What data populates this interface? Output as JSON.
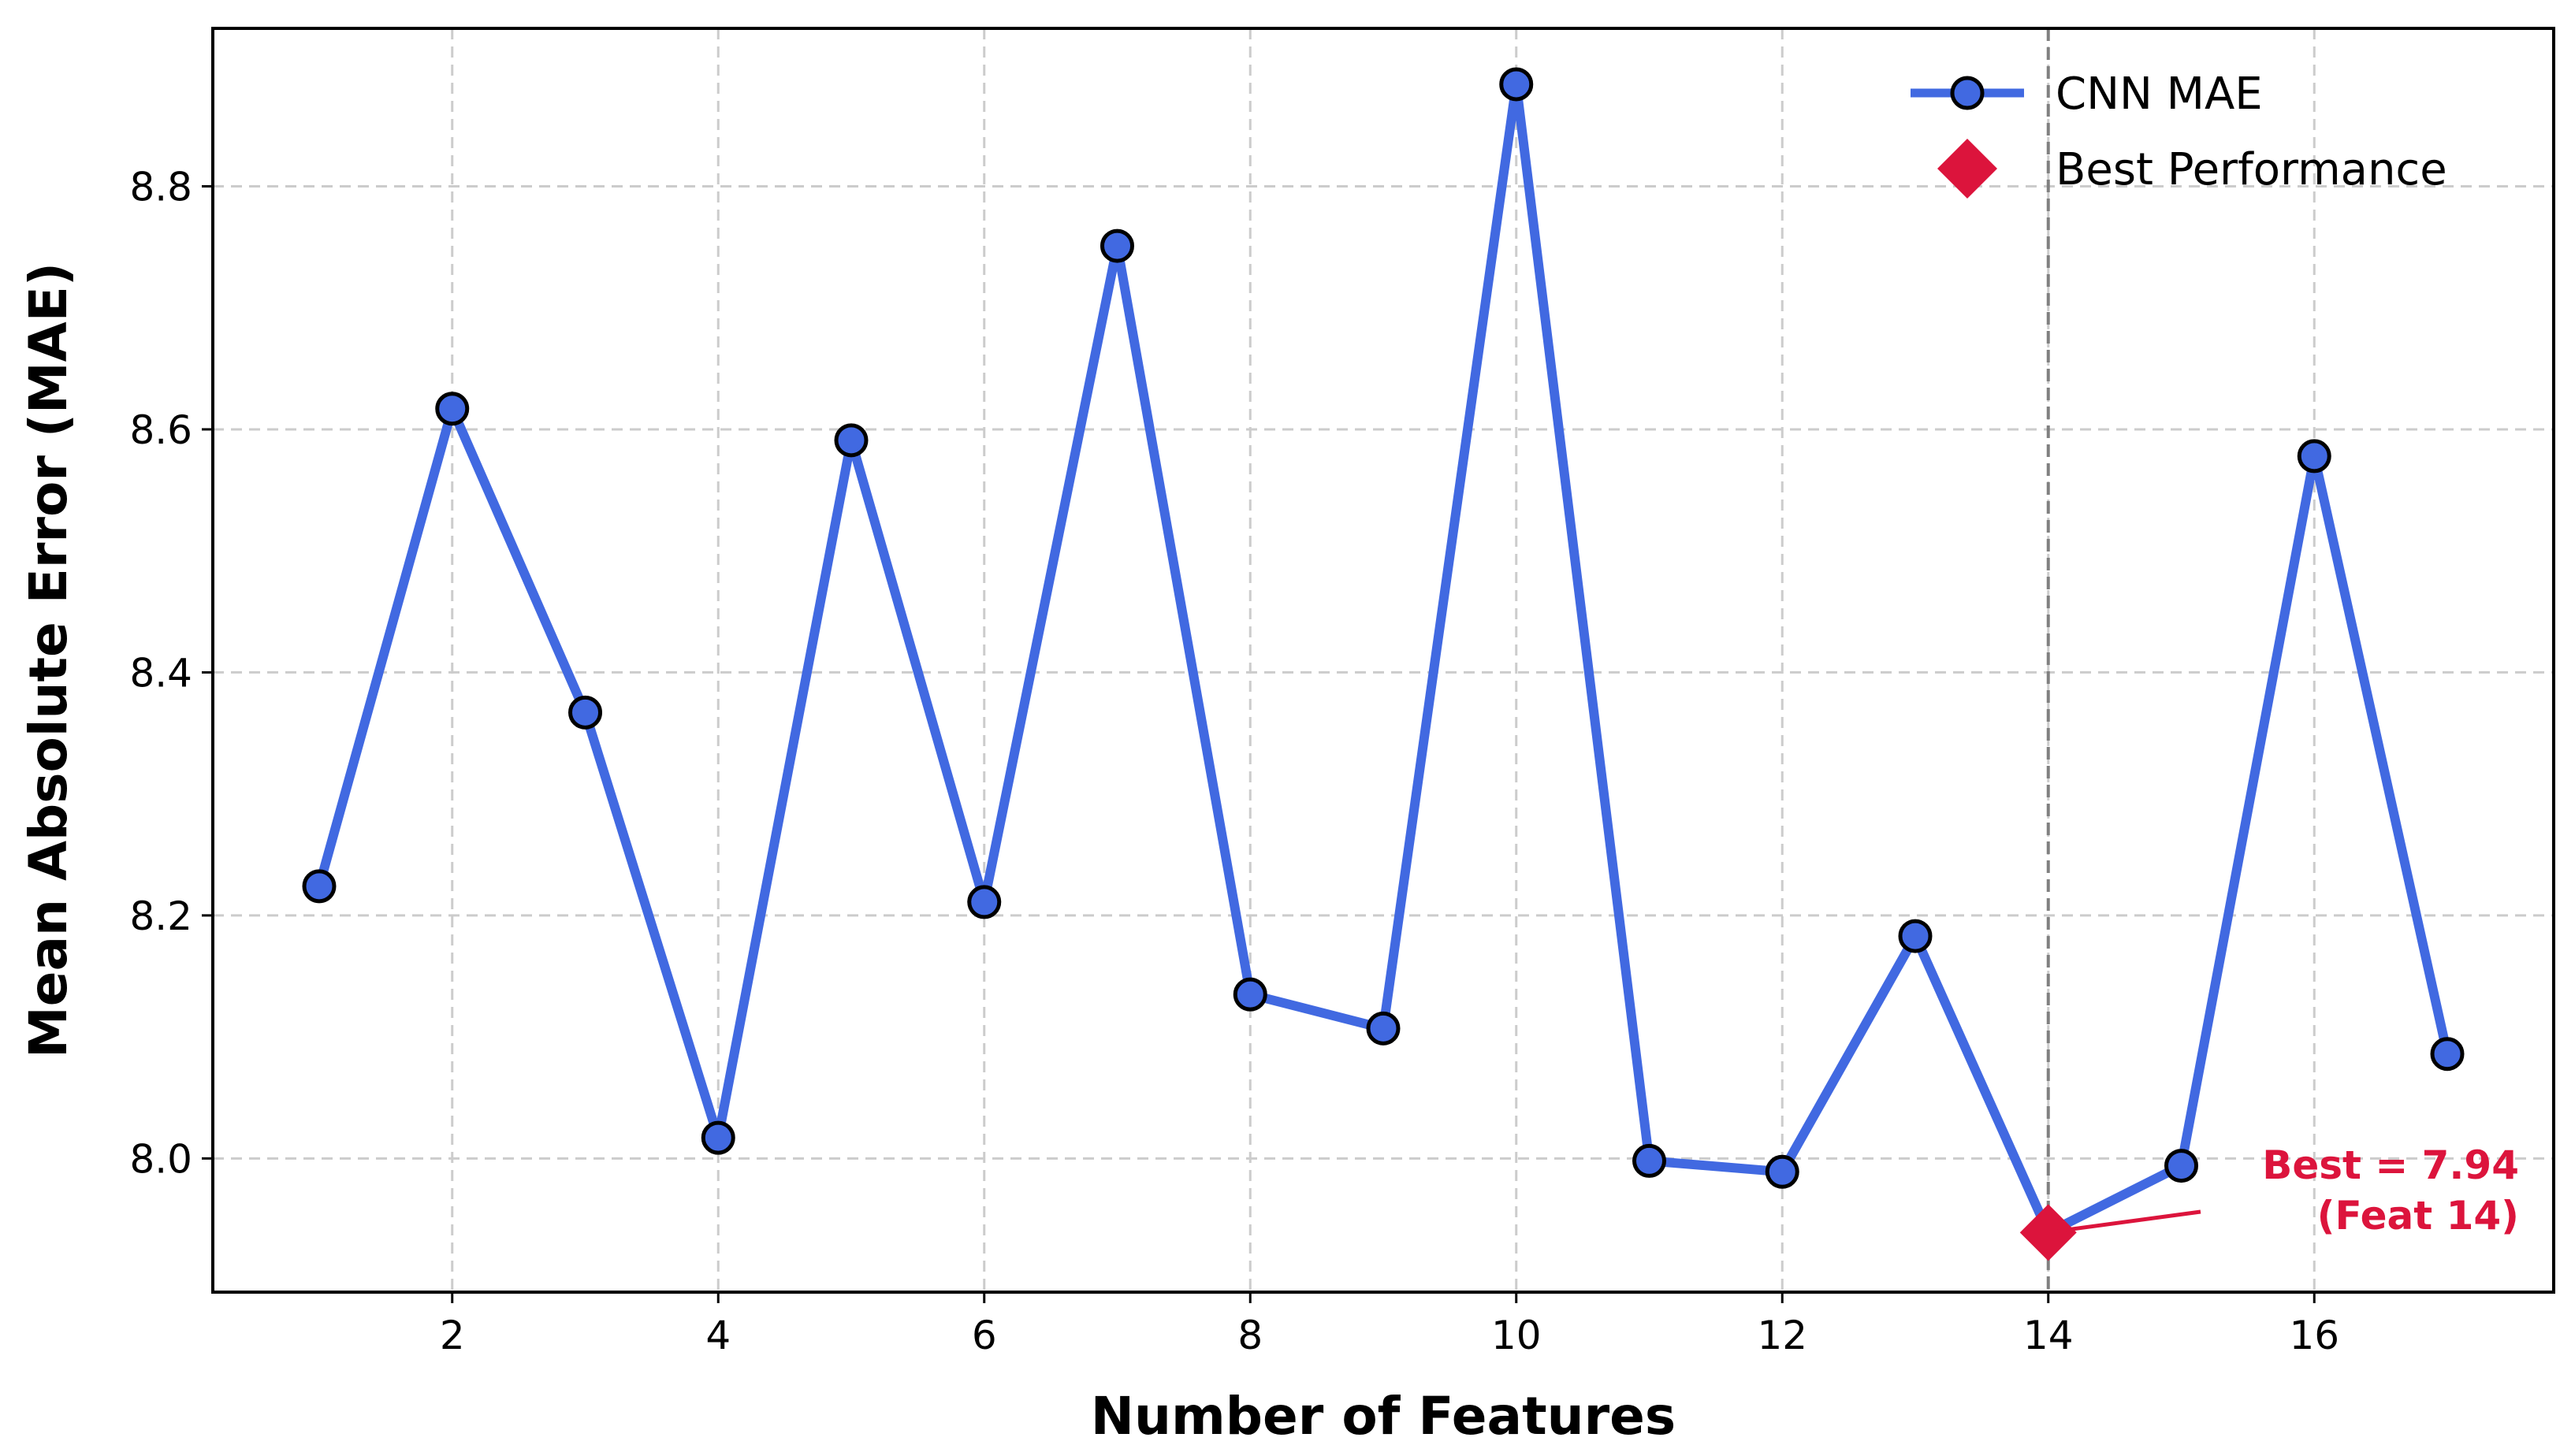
{
  "chart_data": {
    "type": "line",
    "title": "",
    "xlabel": "Number of Features",
    "ylabel": "Mean Absolute Error (MAE)",
    "xlim": [
      0.2,
      17.8
    ],
    "ylim": [
      7.89,
      8.93
    ],
    "xticks": [
      2,
      4,
      6,
      8,
      10,
      12,
      14,
      16
    ],
    "yticks": [
      8.0,
      8.2,
      8.4,
      8.6,
      8.8
    ],
    "grid": true,
    "legend_position": "top-right",
    "series": [
      {
        "name": "CNN MAE",
        "color": "#4169E1",
        "x": [
          1,
          2,
          3,
          4,
          5,
          6,
          7,
          8,
          9,
          10,
          11,
          12,
          13,
          14,
          15,
          16,
          17
        ],
        "values": [
          8.224,
          8.617,
          8.367,
          8.017,
          8.591,
          8.211,
          8.751,
          8.135,
          8.107,
          8.884,
          7.998,
          7.989,
          8.183,
          7.939,
          7.994,
          8.578,
          8.086
        ]
      }
    ],
    "best": {
      "name": "Best Performance",
      "color": "#DC143C",
      "x": 14,
      "y": 7.939,
      "label_line1": "Best = 7.94",
      "label_line2": "(Feat 14)"
    }
  }
}
